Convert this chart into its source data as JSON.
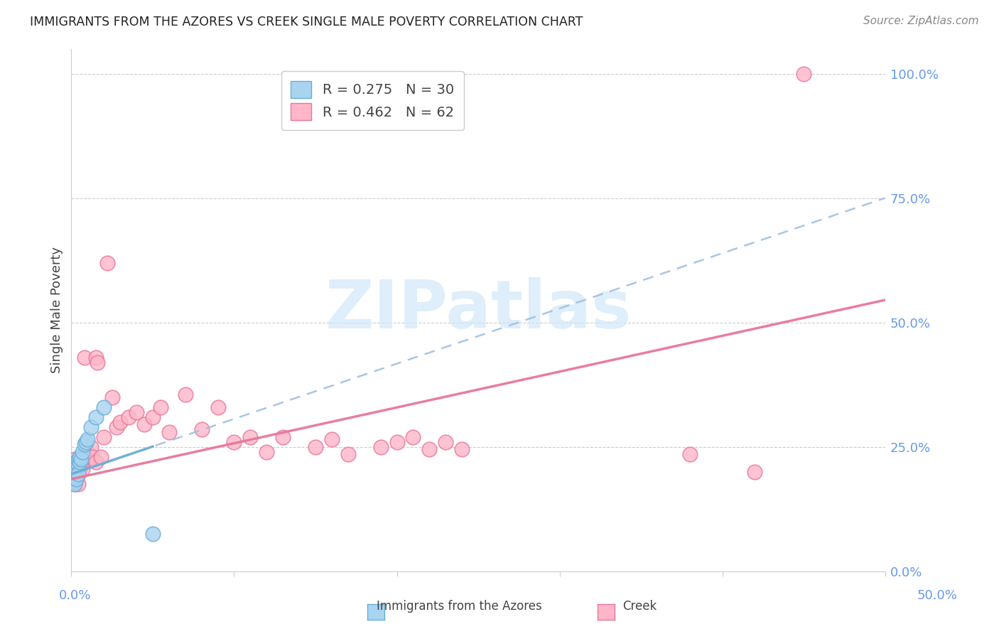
{
  "title": "IMMIGRANTS FROM THE AZORES VS CREEK SINGLE MALE POVERTY CORRELATION CHART",
  "source": "Source: ZipAtlas.com",
  "ylabel": "Single Male Poverty",
  "legend_r1": "R = 0.275",
  "legend_n1": "N = 30",
  "legend_r2": "R = 0.462",
  "legend_n2": "N = 62",
  "color_blue_fill": "#A8D4F0",
  "color_blue_edge": "#6BAED6",
  "color_blue_line": "#6BAED6",
  "color_pink_fill": "#FFB6C8",
  "color_pink_edge": "#E8769A",
  "color_pink_line": "#E8769A",
  "color_dashed": "#A0C0E0",
  "watermark_color": "#D0E8F8",
  "right_axis_color": "#6699EE",
  "azores_x": [
    0.0005,
    0.0005,
    0.001,
    0.001,
    0.001,
    0.001,
    0.001,
    0.002,
    0.002,
    0.002,
    0.002,
    0.002,
    0.003,
    0.003,
    0.003,
    0.003,
    0.004,
    0.004,
    0.004,
    0.005,
    0.005,
    0.006,
    0.007,
    0.008,
    0.009,
    0.01,
    0.012,
    0.015,
    0.02,
    0.05
  ],
  "azores_y": [
    0.195,
    0.185,
    0.19,
    0.2,
    0.205,
    0.21,
    0.18,
    0.195,
    0.205,
    0.215,
    0.175,
    0.19,
    0.2,
    0.21,
    0.185,
    0.22,
    0.215,
    0.225,
    0.195,
    0.22,
    0.23,
    0.225,
    0.24,
    0.255,
    0.26,
    0.265,
    0.29,
    0.31,
    0.33,
    0.075
  ],
  "creek_x": [
    0.001,
    0.001,
    0.001,
    0.002,
    0.002,
    0.002,
    0.002,
    0.003,
    0.003,
    0.003,
    0.003,
    0.003,
    0.004,
    0.004,
    0.004,
    0.005,
    0.005,
    0.006,
    0.006,
    0.007,
    0.007,
    0.008,
    0.008,
    0.009,
    0.01,
    0.011,
    0.012,
    0.013,
    0.015,
    0.015,
    0.016,
    0.018,
    0.02,
    0.022,
    0.025,
    0.028,
    0.03,
    0.035,
    0.04,
    0.045,
    0.05,
    0.055,
    0.06,
    0.07,
    0.08,
    0.09,
    0.1,
    0.11,
    0.12,
    0.13,
    0.15,
    0.16,
    0.17,
    0.19,
    0.2,
    0.21,
    0.22,
    0.23,
    0.24,
    0.38,
    0.42,
    0.45
  ],
  "creek_y": [
    0.195,
    0.205,
    0.185,
    0.195,
    0.215,
    0.175,
    0.225,
    0.2,
    0.185,
    0.215,
    0.195,
    0.205,
    0.175,
    0.215,
    0.195,
    0.21,
    0.205,
    0.215,
    0.225,
    0.205,
    0.23,
    0.22,
    0.43,
    0.225,
    0.24,
    0.23,
    0.25,
    0.23,
    0.43,
    0.22,
    0.42,
    0.23,
    0.27,
    0.62,
    0.35,
    0.29,
    0.3,
    0.31,
    0.32,
    0.295,
    0.31,
    0.33,
    0.28,
    0.355,
    0.285,
    0.33,
    0.26,
    0.27,
    0.24,
    0.27,
    0.25,
    0.265,
    0.235,
    0.25,
    0.26,
    0.27,
    0.245,
    0.26,
    0.245,
    0.235,
    0.2,
    1.0
  ],
  "blue_line_x0": 0.0,
  "blue_line_y0": 0.195,
  "blue_line_x1": 0.5,
  "blue_line_y1": 0.75,
  "pink_line_x0": 0.0,
  "pink_line_y0": 0.185,
  "pink_line_x1": 0.5,
  "pink_line_y1": 0.545,
  "xlim": [
    0.0,
    0.5
  ],
  "ylim": [
    0.0,
    1.05
  ],
  "yticks": [
    0.0,
    0.25,
    0.5,
    0.75,
    1.0
  ],
  "ytick_labels": [
    "0.0%",
    "25.0%",
    "50.0%",
    "75.0%",
    "100.0%"
  ],
  "xtick_labels_x": [
    0.0,
    0.5
  ],
  "xtick_labels_text": [
    "0.0%",
    "50.0%"
  ]
}
